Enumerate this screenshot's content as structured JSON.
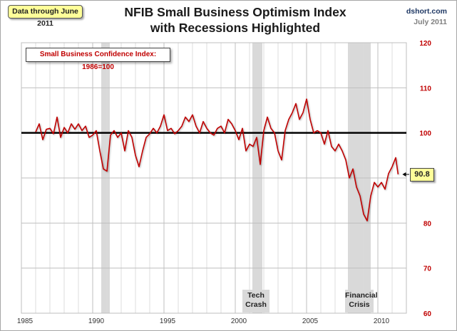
{
  "header": {
    "data_note": "Data through June 2011",
    "title_line1": "NFIB Small Business Optimism Index",
    "title_line2": "with Recessions Highlighted",
    "site": "dshort.com",
    "date": "July 2011"
  },
  "legend": {
    "label": "Small Business Confidence Index: 1986=100"
  },
  "callout": {
    "label": "90.8"
  },
  "recession_labels": [
    {
      "line1": "Tech",
      "line2": "Crash"
    },
    {
      "line1": "Financial",
      "line2": "Crisis"
    }
  ],
  "colors": {
    "series": "#c00000",
    "baseline": "#000000",
    "recession": "#d9d9d9",
    "grid": "#d0d0d0",
    "y_tick_labels": "#c00000",
    "callout_bg": "#ffff99"
  },
  "chart_data": {
    "type": "line",
    "title": "NFIB Small Business Optimism Index with Recessions Highlighted",
    "xlabel": "",
    "ylabel": "",
    "xlim": [
      1985,
      2012
    ],
    "ylim": [
      60,
      120
    ],
    "x_ticks": [
      1985,
      1990,
      1995,
      2000,
      2005,
      2010
    ],
    "y_ticks": [
      60,
      70,
      80,
      90,
      100,
      110,
      120
    ],
    "y_axis_side": "right",
    "grid": true,
    "reference_line": 100,
    "recessions": [
      {
        "start": 1990.6,
        "end": 1991.2
      },
      {
        "start": 2001.2,
        "end": 2001.9,
        "label": "Tech Crash"
      },
      {
        "start": 2007.9,
        "end": 2009.5,
        "label": "Financial Crisis"
      }
    ],
    "series": [
      {
        "name": "Small Business Confidence Index: 1986=100",
        "x": [
          1986.0,
          1986.25,
          1986.5,
          1986.75,
          1987.0,
          1987.25,
          1987.5,
          1987.75,
          1988.0,
          1988.25,
          1988.5,
          1988.75,
          1989.0,
          1989.25,
          1989.5,
          1989.75,
          1990.0,
          1990.25,
          1990.5,
          1990.75,
          1991.0,
          1991.25,
          1991.5,
          1991.75,
          1992.0,
          1992.25,
          1992.5,
          1992.75,
          1993.0,
          1993.25,
          1993.5,
          1993.75,
          1994.0,
          1994.25,
          1994.5,
          1994.75,
          1995.0,
          1995.25,
          1995.5,
          1995.75,
          1996.0,
          1996.25,
          1996.5,
          1996.75,
          1997.0,
          1997.25,
          1997.5,
          1997.75,
          1998.0,
          1998.25,
          1998.5,
          1998.75,
          1999.0,
          1999.25,
          1999.5,
          1999.75,
          2000.0,
          2000.25,
          2000.5,
          2000.75,
          2001.0,
          2001.25,
          2001.5,
          2001.75,
          2002.0,
          2002.25,
          2002.5,
          2002.75,
          2003.0,
          2003.25,
          2003.5,
          2003.75,
          2004.0,
          2004.25,
          2004.5,
          2004.75,
          2005.0,
          2005.25,
          2005.5,
          2005.75,
          2006.0,
          2006.25,
          2006.5,
          2006.75,
          2007.0,
          2007.25,
          2007.5,
          2007.75,
          2008.0,
          2008.25,
          2008.5,
          2008.75,
          2009.0,
          2009.25,
          2009.5,
          2009.75,
          2010.0,
          2010.25,
          2010.5,
          2010.75,
          2011.0,
          2011.25,
          2011.42
        ],
        "values": [
          100.2,
          102.0,
          98.5,
          100.8,
          101.0,
          99.8,
          103.5,
          99.0,
          101.2,
          100.0,
          102.0,
          100.8,
          102.0,
          100.5,
          101.5,
          99.0,
          99.5,
          100.5,
          96.0,
          92.0,
          91.5,
          99.5,
          100.5,
          99.0,
          100.0,
          96.0,
          100.5,
          99.0,
          95.0,
          92.5,
          96.0,
          99.0,
          99.8,
          101.0,
          100.0,
          101.5,
          104.0,
          100.5,
          101.0,
          99.8,
          100.5,
          101.5,
          103.5,
          102.5,
          104.0,
          101.5,
          100.0,
          102.5,
          101.0,
          100.0,
          99.5,
          101.0,
          101.5,
          100.0,
          103.0,
          102.0,
          100.5,
          98.5,
          101.0,
          96.0,
          97.5,
          97.0,
          99.0,
          93.0,
          100.5,
          103.5,
          101.0,
          100.0,
          96.0,
          94.0,
          100.5,
          103.0,
          104.5,
          106.5,
          103.0,
          104.5,
          107.5,
          103.0,
          100.0,
          100.5,
          100.0,
          97.5,
          100.5,
          97.0,
          96.0,
          97.5,
          96.0,
          94.0,
          90.0,
          92.0,
          88.0,
          86.0,
          82.0,
          80.5,
          86.0,
          89.0,
          88.0,
          89.0,
          87.5,
          91.0,
          92.5,
          94.5,
          90.8
        ]
      }
    ]
  }
}
